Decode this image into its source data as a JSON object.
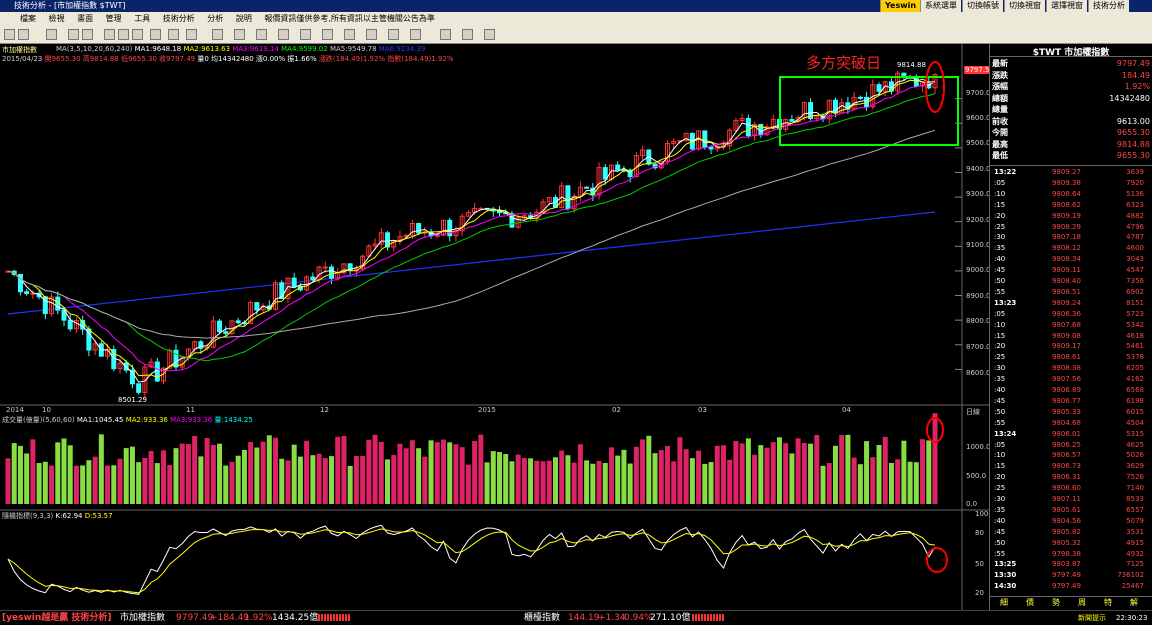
{
  "window": {
    "title": "技術分析 - [市加權指數 $TWT]",
    "brand": "Yeswin",
    "tabs": [
      "系統選單",
      "切換帳號",
      "切換視窗",
      "選擇視窗",
      "技術分析"
    ]
  },
  "menu": [
    "檔案",
    "檢視",
    "畫面",
    "管理",
    "工具",
    "技術分析",
    "分析",
    "說明",
    "報價資訊僅供參考,所有資訊以主管機關公告為準"
  ],
  "main_chart": {
    "name": "市加權指數",
    "date": "2015/04/23",
    "ma_legend": [
      {
        "label": "MA(3,5,10,20,60,240)",
        "color": "#cccccc"
      },
      {
        "label": "MA1:9648.18",
        "color": "#ffffff"
      },
      {
        "label": "MA2:9613.63",
        "color": "#ffff00"
      },
      {
        "label": "MA3:9619.14",
        "color": "#ff00ff"
      },
      {
        "label": "MA4:9599.02",
        "color": "#00ff00"
      },
      {
        "label": "MA5:9549.78",
        "color": "#cccccc"
      },
      {
        "label": "MA6:9234.39",
        "color": "#3333ff"
      }
    ],
    "ohlc_legend": [
      "開9655.30",
      "高9814.88",
      "低9655.30",
      "收9797.49",
      "量0",
      "均14342480",
      "漲0.00%",
      "振1.66%",
      "漲跌(184.49)1.92%",
      "指數(184.49)1.92%"
    ],
    "annotation": "多方突破日",
    "high_label": "9814.88",
    "low_label": "8501.29",
    "last_price_tag": "9797.5",
    "y_ticks": [
      "9700.0",
      "9600.0",
      "9500.0",
      "9400.0",
      "9300.0",
      "9200.0",
      "9100.0",
      "9000.0",
      "8900.0",
      "8800.0",
      "8700.0",
      "8600.0"
    ],
    "x_labels": [
      "2014",
      "10",
      "11",
      "12",
      "2015",
      "02",
      "03",
      "04"
    ],
    "axis_unit": "日線"
  },
  "volume_chart": {
    "legend": [
      "成交量(億量)(5,60,60)",
      "MA1:1045.45",
      "MA2:933.36",
      "MA3:933.36",
      "量:1434.25"
    ],
    "y_ticks": [
      "1000.0",
      "500.0",
      "0.0"
    ]
  },
  "kd_chart": {
    "legend": [
      "隨機指標(9,3,3)",
      "K:62.94",
      "D:53.57"
    ],
    "y_ticks": [
      "100",
      "80",
      "50",
      "20"
    ]
  },
  "chart_data": [
    {
      "type": "line",
      "title": "市加權指數",
      "x": [
        "2014/09",
        "2014/10",
        "2014/11",
        "2014/12",
        "2015/01",
        "2015/02",
        "2015/03",
        "2015/04/23"
      ],
      "series": [
        {
          "name": "收",
          "values": [
            9000,
            8550,
            8900,
            9150,
            9250,
            9500,
            9650,
            9797.49
          ]
        }
      ],
      "ylim": [
        8500,
        9800
      ]
    }
  ],
  "quote": {
    "title": "$TWT 市加權指數",
    "rows": [
      {
        "label": "最新",
        "value": "9797.49",
        "color": "#ff4444"
      },
      {
        "label": "漲跌",
        "value": "184.49",
        "color": "#ff4444"
      },
      {
        "label": "漲幅",
        "value": "1.92%",
        "color": "#ff4444"
      },
      {
        "label": "總額",
        "value": "14342480",
        "color": "#ffffff"
      },
      {
        "label": "總量",
        "value": "",
        "color": "#ffffff"
      },
      {
        "label": "前收",
        "value": "9613.00",
        "color": "#ffffff"
      },
      {
        "label": "今開",
        "value": "9655.30",
        "color": "#ff4444"
      },
      {
        "label": "最高",
        "value": "9814.88",
        "color": "#ff4444"
      },
      {
        "label": "最低",
        "value": "9655.30",
        "color": "#ff4444"
      }
    ],
    "ticks": [
      {
        "t": "13:22",
        "p": "9809.27",
        "v": "3639"
      },
      {
        "t": ":05",
        "p": "9809.38",
        "v": "7920"
      },
      {
        "t": ":10",
        "p": "9808.64",
        "v": "5136"
      },
      {
        "t": ":15",
        "p": "9808.62",
        "v": "6323"
      },
      {
        "t": ":20",
        "p": "9809.19",
        "v": "4882"
      },
      {
        "t": ":25",
        "p": "9808.29",
        "v": "4796"
      },
      {
        "t": ":30",
        "p": "9807.18",
        "v": "4787"
      },
      {
        "t": ":35",
        "p": "9808.12",
        "v": "4600"
      },
      {
        "t": ":40",
        "p": "9808.34",
        "v": "3043"
      },
      {
        "t": ":45",
        "p": "9809.11",
        "v": "4547"
      },
      {
        "t": ":50",
        "p": "9808.40",
        "v": "7356"
      },
      {
        "t": ":55",
        "p": "9808.51",
        "v": "6902"
      },
      {
        "t": "13:23",
        "p": "9809.24",
        "v": "8151"
      },
      {
        "t": ":05",
        "p": "9806.36",
        "v": "5723"
      },
      {
        "t": ":10",
        "p": "9807.68",
        "v": "5342"
      },
      {
        "t": ":15",
        "p": "9809.08",
        "v": "4618"
      },
      {
        "t": ":20",
        "p": "9809.17",
        "v": "5461"
      },
      {
        "t": ":25",
        "p": "9808.61",
        "v": "5378"
      },
      {
        "t": ":30",
        "p": "9808.38",
        "v": "6205"
      },
      {
        "t": ":35",
        "p": "9807.56",
        "v": "4162"
      },
      {
        "t": ":40",
        "p": "9806.89",
        "v": "6568"
      },
      {
        "t": ":45",
        "p": "9806.77",
        "v": "6198"
      },
      {
        "t": ":50",
        "p": "9805.33",
        "v": "6015"
      },
      {
        "t": ":55",
        "p": "9804.68",
        "v": "4504"
      },
      {
        "t": "13:24",
        "p": "9806.01",
        "v": "5315"
      },
      {
        "t": ":05",
        "p": "9806.25",
        "v": "4625"
      },
      {
        "t": ":10",
        "p": "9806.57",
        "v": "5026"
      },
      {
        "t": ":15",
        "p": "9806.73",
        "v": "3629"
      },
      {
        "t": ":20",
        "p": "9806.31",
        "v": "7526"
      },
      {
        "t": ":25",
        "p": "9806.60",
        "v": "7140"
      },
      {
        "t": ":30",
        "p": "9807.11",
        "v": "8533"
      },
      {
        "t": ":35",
        "p": "9805.61",
        "v": "6557"
      },
      {
        "t": ":40",
        "p": "9804.56",
        "v": "5079"
      },
      {
        "t": ":45",
        "p": "9805.82",
        "v": "3531"
      },
      {
        "t": ":50",
        "p": "9805.32",
        "v": "4915"
      },
      {
        "t": ":55",
        "p": "9798.38",
        "v": "4932"
      },
      {
        "t": "13:25",
        "p": "9803.87",
        "v": "7125"
      },
      {
        "t": "13:30",
        "p": "9797.49",
        "v": "736102"
      },
      {
        "t": "14:30",
        "p": "9797.49",
        "v": "25467"
      }
    ],
    "bottom_tabs": [
      "細",
      "價",
      "勢",
      "周",
      "特",
      "解"
    ]
  },
  "status": {
    "brand": "[yeswin越是贏 技術分析]",
    "items": [
      {
        "name": "市加權指數",
        "price": "9797.49",
        "change": "+184.49",
        "pct": "1.92%",
        "vol": "1434.25億"
      },
      {
        "name": "櫃檯指數",
        "price": "144.19",
        "change": "+1.34",
        "pct": "0.94%",
        "vol": "271.10億"
      }
    ],
    "news": "新聞提示",
    "clock": "22:30:23"
  }
}
